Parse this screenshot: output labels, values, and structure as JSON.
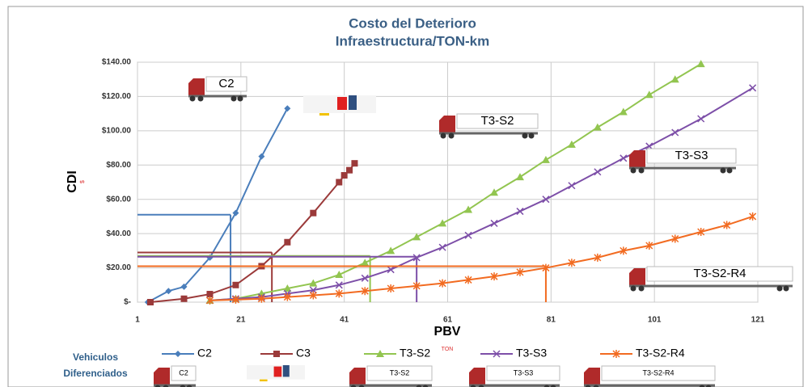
{
  "chart_data": {
    "type": "line",
    "title": "Costo del Deterioro",
    "subtitle": "Infraestructura/TON-km",
    "y_label": "CDI",
    "y_unit": "$",
    "x_label": "PBV",
    "x_unit": "TON",
    "legend_title": [
      "Vehiculos",
      "Diferenciados"
    ],
    "annotations": [
      "C2",
      "T3-S2",
      "T3-S3",
      "T3-S2-R4"
    ],
    "xlim": [
      1,
      121
    ],
    "xticks": [
      1,
      21,
      41,
      61,
      81,
      101,
      121
    ],
    "ylim": [
      0,
      140
    ],
    "yticks": [
      {
        "value": 0,
        "label": "$-"
      },
      {
        "value": 20,
        "label": "$20.00"
      },
      {
        "value": 40,
        "label": "$40.00"
      },
      {
        "value": 60,
        "label": "$60.00"
      },
      {
        "value": 80,
        "label": "$80.00"
      },
      {
        "value": 100,
        "label": "$100.00"
      },
      {
        "value": 120,
        "label": "$120.00"
      },
      {
        "value": 140,
        "label": "$140.00"
      }
    ],
    "grid": true,
    "series": [
      {
        "name": "C2",
        "color": "#4a7ebb",
        "marker": "diamond",
        "x": [
          3,
          7,
          10,
          15,
          20,
          25,
          30
        ],
        "values": [
          0,
          6.5,
          9,
          26,
          52,
          85,
          113
        ],
        "guide": {
          "x": 19,
          "y": 51
        }
      },
      {
        "name": "C3",
        "color": "#9b3a3a",
        "marker": "square",
        "x": [
          3.5,
          10,
          15,
          20,
          25,
          30,
          35,
          40,
          41,
          42,
          43
        ],
        "values": [
          0,
          2,
          4.7,
          10,
          21,
          35,
          52,
          70,
          74,
          77,
          81
        ],
        "guide": {
          "x": 27,
          "y": 29
        }
      },
      {
        "name": "T3-S2",
        "color": "#92c550",
        "marker": "triangle",
        "x": [
          15,
          20,
          25,
          30,
          35,
          40,
          45,
          50,
          55,
          60,
          65,
          70,
          75,
          80,
          85,
          90,
          95,
          100,
          105,
          110
        ],
        "values": [
          1,
          2,
          5,
          8,
          11,
          16,
          23,
          30,
          38,
          46,
          54,
          64,
          73,
          83,
          92,
          102,
          111,
          121,
          130,
          139
        ],
        "guide": {
          "x": 46,
          "y": 27
        }
      },
      {
        "name": "T3-S3",
        "color": "#7d4fa8",
        "marker": "cross",
        "x": [
          15,
          20,
          25,
          30,
          35,
          40,
          45,
          50,
          55,
          60,
          65,
          70,
          75,
          80,
          85,
          90,
          95,
          100,
          105,
          110,
          120
        ],
        "values": [
          1,
          2,
          3,
          5,
          7,
          10,
          14,
          19,
          26,
          32,
          39,
          46,
          53,
          60,
          68,
          76,
          84,
          91,
          99,
          107,
          125
        ],
        "guide": {
          "x": 55,
          "y": 26.5
        }
      },
      {
        "name": "T3-S2-R4",
        "color": "#f26b21",
        "marker": "star",
        "x": [
          15,
          20,
          25,
          30,
          35,
          40,
          45,
          50,
          55,
          60,
          65,
          70,
          75,
          80,
          85,
          90,
          95,
          100,
          105,
          110,
          115,
          120
        ],
        "values": [
          1,
          1.5,
          2,
          3,
          4,
          5,
          6.5,
          8,
          9.5,
          11,
          13,
          15,
          17.5,
          20,
          23,
          26,
          30,
          33,
          37,
          41,
          45,
          50
        ],
        "guide": {
          "x": 80,
          "y": 21
        }
      }
    ]
  }
}
